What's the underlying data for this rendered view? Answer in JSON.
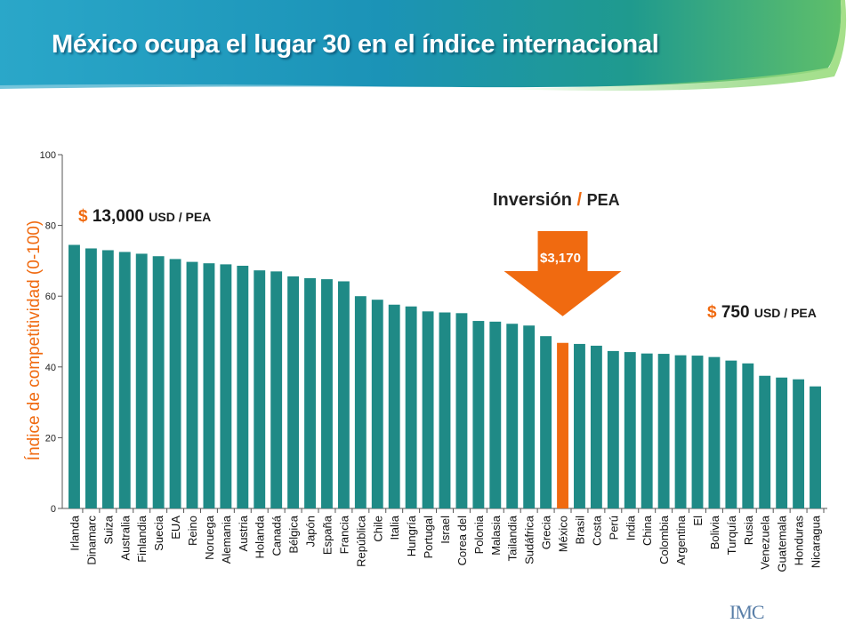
{
  "slide": {
    "title": "México ocupa el lugar 30 en el índice internacional",
    "logo_text": "IMC",
    "colors": {
      "bar": "#1f8a86",
      "highlight": "#f06a10",
      "banner": "#1a8fb0",
      "accent": "#f06a10"
    }
  },
  "annotations": {
    "high_symbol": "$",
    "high_value": "13,000",
    "high_unit": "USD / PEA",
    "low_symbol": "$",
    "low_value": "750",
    "low_unit": "USD / PEA",
    "investment_label": "Inversión",
    "investment_slash": "/",
    "investment_unit": "PEA",
    "arrow_value": "$3,170"
  },
  "chart_data": {
    "type": "bar",
    "ylabel": "Índice de competitividad (0-100)",
    "ylim": [
      0,
      100
    ],
    "yticks": [
      0,
      20,
      40,
      60,
      80,
      100
    ],
    "highlight_category": "México",
    "categories": [
      "Irlanda",
      "Dinamarc",
      "Suiza",
      "Australia",
      "Finlandia",
      "Suecia",
      "EUA",
      "Reino",
      "Noruega",
      "Alemania",
      "Austria",
      "Holanda",
      "Canadá",
      "Bélgica",
      "Japón",
      "España",
      "Francia",
      "República",
      "Chile",
      "Italia",
      "Hungría",
      "Portugal",
      "Israel",
      "Corea del",
      "Polonia",
      "Malasia",
      "Tailandia",
      "Sudáfrica",
      "Grecia",
      "México",
      "Brasil",
      "Costa",
      "Perú",
      "India",
      "China",
      "Colombia",
      "Argentina",
      "El",
      "Bolivia",
      "Turquía",
      "Rusia",
      "Venezuela",
      "Guatemala",
      "Honduras",
      "Nicaragua"
    ],
    "values": [
      74.5,
      73.5,
      73.0,
      72.5,
      72.0,
      71.3,
      70.5,
      69.7,
      69.3,
      69.0,
      68.6,
      67.3,
      67.0,
      65.6,
      65.1,
      64.8,
      64.2,
      60.0,
      59.0,
      57.6,
      57.1,
      55.7,
      55.4,
      55.2,
      53.0,
      52.8,
      52.2,
      51.7,
      48.7,
      46.8,
      46.5,
      46.0,
      44.5,
      44.2,
      43.8,
      43.7,
      43.3,
      43.2,
      42.8,
      41.8,
      41.0,
      37.5,
      37.0,
      36.5,
      34.5
    ]
  }
}
